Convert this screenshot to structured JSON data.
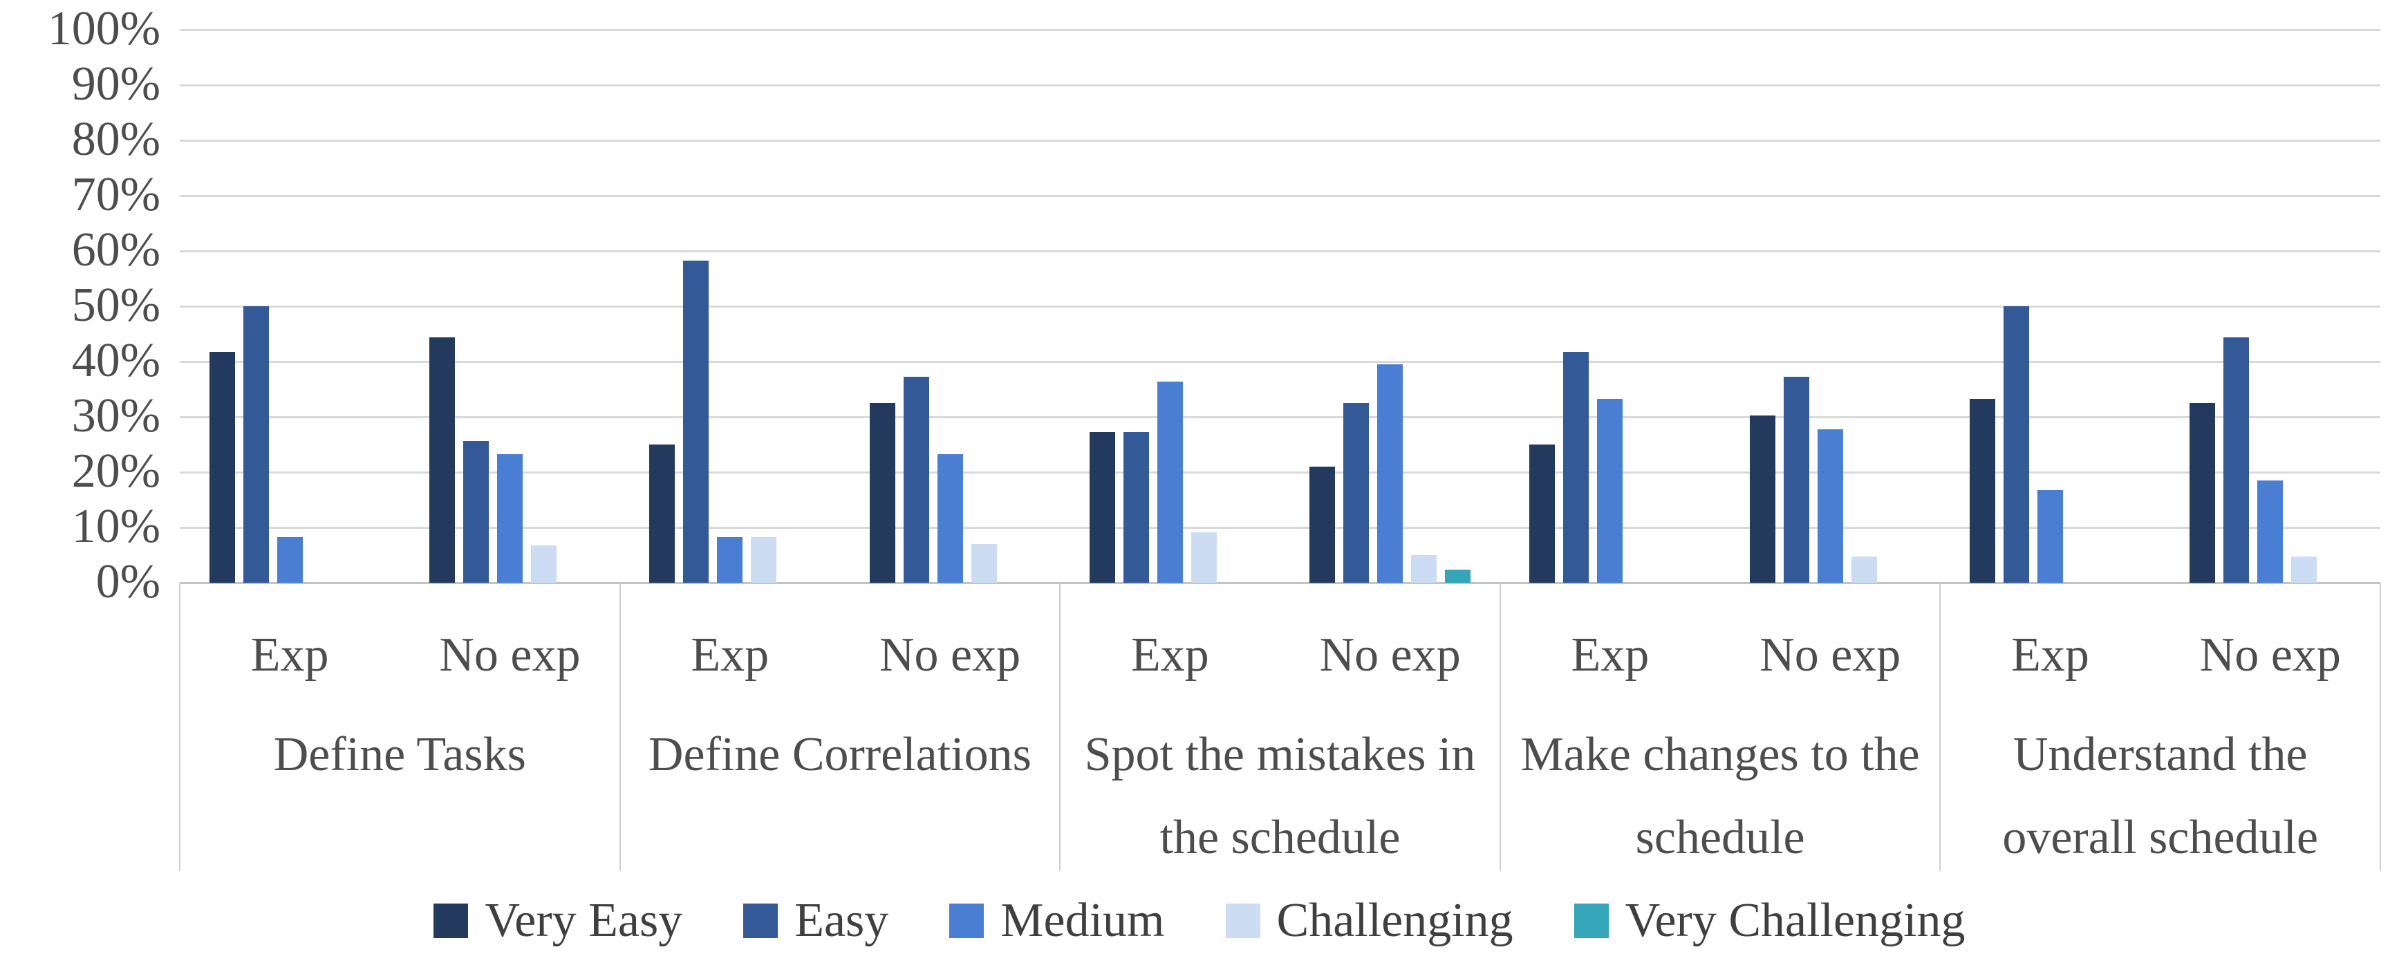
{
  "chart_data": {
    "type": "bar",
    "title": "",
    "xlabel": "",
    "ylabel": "",
    "ylim": [
      0,
      100
    ],
    "grid": true,
    "legend_position": "bottom",
    "y_axis": {
      "ticks": [
        "100%",
        "90%",
        "80%",
        "70%",
        "60%",
        "50%",
        "40%",
        "30%",
        "20%",
        "10%",
        "0%"
      ]
    },
    "series": [
      {
        "name": "Very Easy",
        "color": "#24395e"
      },
      {
        "name": "Easy",
        "color": "#335a97"
      },
      {
        "name": "Medium",
        "color": "#4a7ed3"
      },
      {
        "name": "Challenging",
        "color": "#cbdcf3"
      },
      {
        "name": "Very Challenging",
        "color": "#35a5ba"
      }
    ],
    "group_labels": [
      "Exp",
      "No exp"
    ],
    "categories": [
      {
        "label": "Define Tasks",
        "display": "Define Tasks",
        "groups": [
          {
            "label": "Exp",
            "values": [
              41.7,
              50.0,
              8.3,
              0,
              0
            ]
          },
          {
            "label": "No exp",
            "values": [
              44.4,
              25.6,
              23.3,
              6.7,
              0
            ]
          }
        ]
      },
      {
        "label": "Define Correlations",
        "display": "Define Correlations",
        "groups": [
          {
            "label": "Exp",
            "values": [
              25.0,
              58.3,
              8.3,
              8.3,
              0
            ]
          },
          {
            "label": "No exp",
            "values": [
              32.5,
              37.2,
              23.3,
              7.0,
              0
            ]
          }
        ]
      },
      {
        "label": "Spot the mistakes in the schedule",
        "display": "Spot the mistakes in\nthe schedule",
        "groups": [
          {
            "label": "Exp",
            "values": [
              27.3,
              27.3,
              36.4,
              9.1,
              0
            ]
          },
          {
            "label": "No exp",
            "values": [
              21.0,
              32.5,
              39.5,
              5.0,
              2.4
            ]
          }
        ]
      },
      {
        "label": "Make changes to the schedule",
        "display": "Make changes to the\nschedule",
        "groups": [
          {
            "label": "Exp",
            "values": [
              25.0,
              41.7,
              33.3,
              0,
              0
            ]
          },
          {
            "label": "No exp",
            "values": [
              30.2,
              37.2,
              27.8,
              4.8,
              0
            ]
          }
        ]
      },
      {
        "label": "Understand the overall schedule",
        "display": "Understand the\noverall schedule",
        "groups": [
          {
            "label": "Exp",
            "values": [
              33.3,
              50.0,
              16.7,
              0,
              0
            ]
          },
          {
            "label": "No exp",
            "values": [
              32.5,
              44.4,
              18.5,
              4.8,
              0
            ]
          }
        ]
      }
    ]
  },
  "layout_colors": {
    "gridline": "#d9d9d9",
    "axis_line": "#c3c3c3",
    "divider": "#cfcfcf",
    "text": "#4d4d4d"
  }
}
